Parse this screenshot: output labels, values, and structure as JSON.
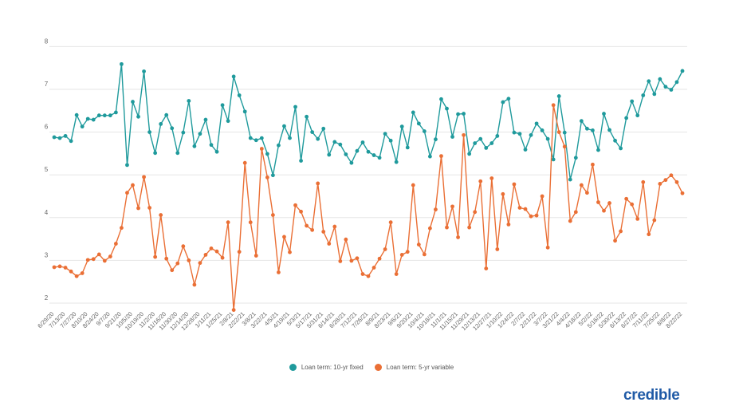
{
  "chart_data": {
    "type": "line",
    "title": "",
    "xlabel": "",
    "ylabel": "",
    "ylim": [
      2,
      8
    ],
    "yticks": [
      2,
      3,
      4,
      5,
      6,
      7,
      8
    ],
    "grid": true,
    "legend_position": "bottom",
    "x": [
      "6/29/20",
      "7/6/20",
      "7/13/20",
      "7/20/20",
      "7/27/20",
      "8/3/20",
      "8/10/20",
      "8/17/20",
      "8/24/20",
      "8/31/20",
      "9/7/20",
      "9/14/20",
      "9/21/20",
      "9/28/20",
      "10/5/20",
      "10/12/20",
      "10/19/20",
      "10/26/20",
      "11/2/20",
      "11/9/20",
      "11/16/20",
      "11/23/20",
      "11/30/20",
      "12/7/20",
      "12/14/20",
      "12/21/20",
      "12/28/20",
      "1/4/21",
      "1/11/21",
      "1/18/21",
      "1/25/21",
      "2/1/21",
      "2/8/21",
      "2/15/21",
      "2/22/21",
      "3/1/21",
      "3/8/21",
      "3/15/21",
      "3/22/21",
      "3/29/21",
      "4/5/21",
      "4/12/21",
      "4/19/21",
      "4/26/21",
      "5/3/21",
      "5/10/21",
      "5/17/21",
      "5/24/21",
      "5/31/21",
      "6/7/21",
      "6/14/21",
      "6/21/21",
      "6/28/21",
      "7/5/21",
      "7/12/21",
      "7/19/21",
      "7/26/21",
      "8/2/21",
      "8/9/21",
      "8/16/21",
      "8/23/21",
      "8/30/21",
      "9/6/21",
      "9/13/21",
      "9/20/21",
      "9/27/21",
      "10/4/21",
      "10/11/21",
      "10/18/21",
      "10/25/21",
      "11/1/21",
      "11/8/21",
      "11/15/21",
      "11/22/21",
      "11/29/21",
      "12/6/21",
      "12/13/21",
      "12/20/21",
      "12/27/21",
      "1/3/22",
      "1/10/22",
      "1/17/22",
      "1/24/22",
      "1/31/22",
      "2/7/22",
      "2/14/22",
      "2/21/22",
      "2/28/22",
      "3/7/22",
      "3/14/22",
      "3/21/22",
      "3/28/22",
      "4/4/22",
      "4/11/22",
      "4/18/22",
      "4/25/22",
      "5/2/22",
      "5/9/22",
      "5/16/22",
      "5/23/22",
      "5/30/22",
      "6/6/22",
      "6/13/22",
      "6/20/22",
      "6/27/22",
      "7/4/22",
      "7/11/22",
      "7/18/22",
      "7/25/22",
      "8/1/22",
      "8/8/22",
      "8/15/22",
      "8/22/22"
    ],
    "xtick_labels": [
      "6/29/20",
      "7/13/20",
      "7/27/20",
      "8/10/20",
      "8/24/20",
      "9/7/20",
      "9/21/20",
      "10/5/20",
      "10/19/20",
      "11/2/20",
      "11/16/20",
      "11/30/20",
      "12/14/20",
      "12/28/20",
      "1/11/21",
      "1/25/21",
      "2/8/21",
      "2/22/21",
      "3/8/21",
      "3/22/21",
      "4/5/21",
      "4/19/21",
      "5/3/21",
      "5/17/21",
      "5/31/21",
      "6/14/21",
      "6/28/21",
      "7/12/21",
      "7/26/21",
      "8/9/21",
      "8/23/21",
      "9/6/21",
      "9/20/21",
      "10/4/21",
      "10/18/21",
      "11/1/21",
      "11/15/21",
      "11/29/21",
      "12/13/21",
      "12/27/21",
      "1/10/22",
      "1/24/22",
      "2/7/22",
      "2/21/22",
      "3/7/22",
      "3/21/22",
      "4/4/22",
      "4/18/22",
      "5/2/22",
      "5/16/22",
      "5/30/22",
      "6/13/22",
      "6/27/22",
      "7/11/22",
      "7/25/22",
      "8/8/22",
      "8/22/22"
    ],
    "series": [
      {
        "name": "Loan term: 10-yr fixed",
        "color": "#1f9a9c",
        "values": [
          5.88,
          5.86,
          5.91,
          5.79,
          6.4,
          6.13,
          6.31,
          6.29,
          6.39,
          6.39,
          6.39,
          6.46,
          7.59,
          5.23,
          6.71,
          6.36,
          7.42,
          6.0,
          5.51,
          6.19,
          6.4,
          6.09,
          5.51,
          5.99,
          6.73,
          5.67,
          5.96,
          6.29,
          5.7,
          5.54,
          6.63,
          6.26,
          7.3,
          6.86,
          6.48,
          5.86,
          5.81,
          5.86,
          5.49,
          4.99,
          5.69,
          6.14,
          5.86,
          6.59,
          5.33,
          6.36,
          6.0,
          5.84,
          6.08,
          5.47,
          5.77,
          5.71,
          5.48,
          5.28,
          5.56,
          5.76,
          5.54,
          5.46,
          5.4,
          5.96,
          5.8,
          5.3,
          6.13,
          5.64,
          6.46,
          6.2,
          6.02,
          5.43,
          5.83,
          6.77,
          6.55,
          5.89,
          6.42,
          6.43,
          5.49,
          5.74,
          5.84,
          5.63,
          5.74,
          5.91,
          6.7,
          6.78,
          5.99,
          5.96,
          5.59,
          5.93,
          6.2,
          6.04,
          5.84,
          5.36,
          6.84,
          5.99,
          4.89,
          5.4,
          6.26,
          6.08,
          6.04,
          5.58,
          6.43,
          6.05,
          5.8,
          5.62,
          6.33,
          6.72,
          6.39,
          6.86,
          7.19,
          6.89,
          7.24,
          7.06,
          6.99,
          7.17,
          7.43
        ]
      },
      {
        "name": "Loan term: 5-yr variable",
        "color": "#ea6f35",
        "values": [
          2.84,
          2.86,
          2.83,
          2.74,
          2.63,
          2.7,
          3.01,
          3.03,
          3.14,
          2.99,
          3.09,
          3.39,
          3.76,
          4.58,
          4.76,
          4.22,
          4.95,
          4.23,
          3.08,
          4.06,
          3.04,
          2.77,
          2.93,
          3.33,
          3.0,
          2.43,
          2.94,
          3.13,
          3.28,
          3.21,
          3.06,
          3.89,
          1.84,
          3.2,
          5.28,
          3.89,
          3.11,
          5.61,
          4.94,
          4.06,
          2.72,
          3.55,
          3.19,
          4.29,
          4.14,
          3.81,
          3.71,
          4.8,
          3.67,
          3.39,
          3.79,
          2.98,
          3.49,
          2.99,
          3.05,
          2.68,
          2.63,
          2.83,
          3.04,
          3.26,
          3.89,
          2.68,
          3.13,
          3.2,
          4.76,
          3.37,
          3.14,
          3.75,
          4.19,
          5.44,
          3.77,
          4.26,
          3.54,
          5.93,
          3.77,
          4.13,
          4.85,
          2.81,
          4.92,
          3.26,
          4.55,
          3.84,
          4.78,
          4.23,
          4.2,
          4.03,
          4.05,
          4.5,
          3.3,
          6.63,
          6.0,
          5.66,
          3.92,
          4.13,
          4.76,
          4.58,
          5.24,
          4.36,
          4.16,
          4.34,
          3.46,
          3.68,
          4.44,
          4.31,
          3.97,
          4.83,
          3.61,
          3.94,
          4.79,
          4.88,
          4.99,
          4.83,
          4.57
        ]
      }
    ]
  },
  "legend": {
    "items": [
      {
        "label": "Loan term: 10-yr fixed",
        "color": "#1f9a9c"
      },
      {
        "label": "Loan term: 5-yr variable",
        "color": "#ea6f35"
      }
    ]
  },
  "logo": {
    "text": "credible",
    "color": "#1f5aa6"
  }
}
